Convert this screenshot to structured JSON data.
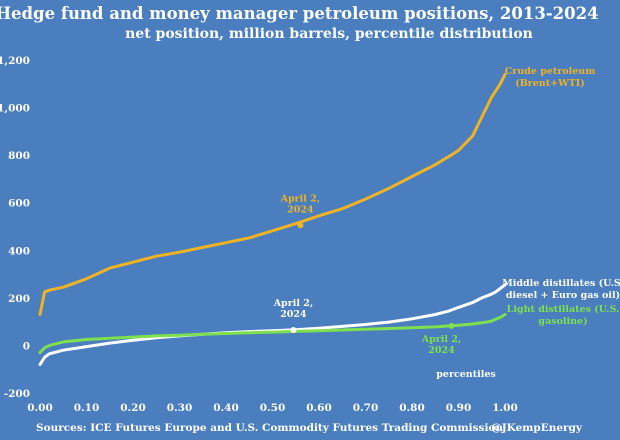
{
  "colors": {
    "background": "#4a7ebf",
    "crude": "#f0b323",
    "middle": "#ffffff",
    "light": "#7ee04c",
    "text": "#ffffff"
  },
  "chart_data": {
    "type": "line",
    "title": "Hedge fund and money manager petroleum positions, 2013-2024",
    "subtitle": "net position, million barrels, percentile distribution",
    "xlabel": "percentiles",
    "ylabel": "",
    "xlim": [
      0,
      1
    ],
    "ylim": [
      -200,
      1200
    ],
    "x_ticks": [
      "0.00",
      "0.10",
      "0.20",
      "0.30",
      "0.40",
      "0.50",
      "0.60",
      "0.70",
      "0.80",
      "0.90",
      "1.00"
    ],
    "y_ticks": [
      "-200",
      "0",
      "200",
      "400",
      "600",
      "800",
      "1,000",
      "1,200"
    ],
    "grid": false,
    "x": [
      0.0,
      0.01,
      0.02,
      0.05,
      0.1,
      0.15,
      0.2,
      0.25,
      0.3,
      0.35,
      0.4,
      0.45,
      0.5,
      0.55,
      0.6,
      0.65,
      0.7,
      0.75,
      0.8,
      0.85,
      0.88,
      0.9,
      0.93,
      0.95,
      0.97,
      0.98,
      0.99,
      1.0
    ],
    "series": [
      {
        "name": "Crude petroleum (Brent+WTI)",
        "color": "#f0b323",
        "values": [
          130,
          225,
          232,
          245,
          280,
          325,
          350,
          375,
          392,
          412,
          432,
          452,
          482,
          512,
          545,
          575,
          615,
          660,
          710,
          760,
          795,
          820,
          880,
          960,
          1040,
          1070,
          1100,
          1140
        ],
        "annotation": {
          "label": "April 2, 2024",
          "x": 0.56,
          "y": 505
        }
      },
      {
        "name": "Middle distillates (U.S. diesel + Euro gas oil)",
        "color": "#ffffff",
        "values": [
          -80,
          -50,
          -35,
          -20,
          -5,
          10,
          22,
          32,
          40,
          47,
          53,
          58,
          62,
          66,
          72,
          80,
          88,
          98,
          112,
          130,
          145,
          160,
          180,
          200,
          215,
          225,
          240,
          255
        ],
        "annotation": {
          "label": "April 2, 2024",
          "x": 0.545,
          "y": 65
        }
      },
      {
        "name": "Light distillates (U.S. gasoline)",
        "color": "#7ee04c",
        "values": [
          -30,
          -10,
          0,
          15,
          25,
          30,
          35,
          40,
          43,
          47,
          50,
          53,
          56,
          59,
          62,
          65,
          68,
          71,
          74,
          78,
          82,
          85,
          90,
          95,
          102,
          110,
          118,
          130
        ],
        "annotation": {
          "label": "April 2, 2024",
          "x": 0.885,
          "y": 82
        }
      }
    ],
    "legend_placement": "inline-right"
  },
  "labels": {
    "crude_line1": "Crude petroleum",
    "crude_line2": "(Brent+WTI)",
    "middle_line1": "Middle distillates (U.S.",
    "middle_line2": "diesel + Euro gas oil)",
    "light_line1": "Light distillates (U.S.",
    "light_line2": "gasoline)",
    "anno_line1": "April 2,",
    "anno_line2": "2024",
    "source": "Sources: ICE Futures Europe and U.S. Commodity Futures Trading Commission",
    "handle": "@JKempEnergy"
  }
}
